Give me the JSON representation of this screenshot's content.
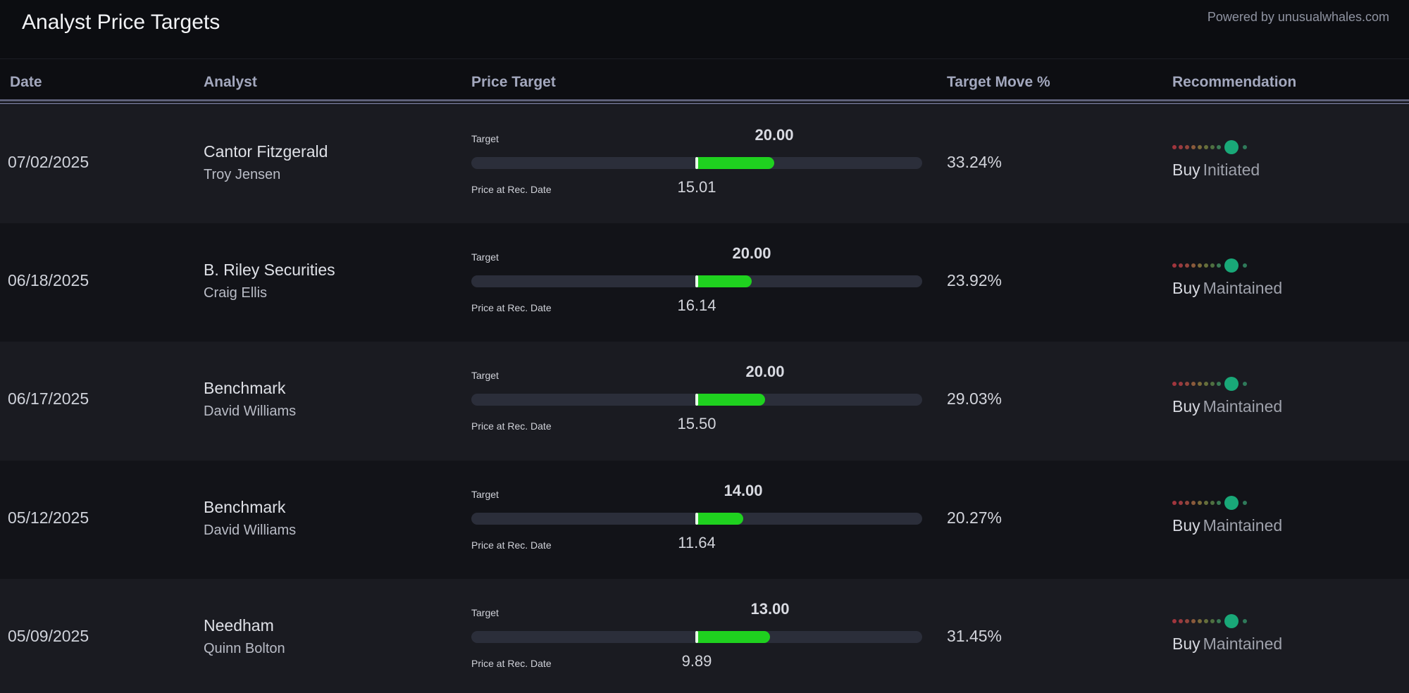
{
  "header": {
    "title": "Analyst Price Targets",
    "powered_by": "Powered by unusualwhales.com"
  },
  "columns": {
    "date": "Date",
    "analyst": "Analyst",
    "price_target": "Price Target",
    "target_move": "Target Move %",
    "recommendation": "Recommendation"
  },
  "labels": {
    "target": "Target",
    "price_at_rec": "Price at Rec. Date"
  },
  "colors": {
    "background": "#0d0e12",
    "row_odd": "#1a1b21",
    "row_even": "#121318",
    "fill_green": "#1fd11f",
    "rating_dot": "#19a878"
  },
  "rows": [
    {
      "date": "07/02/2025",
      "firm": "Cantor Fitzgerald",
      "analyst": "Troy Jensen",
      "target": "20.00",
      "price": "15.01",
      "move": "33.24%",
      "rating": "Buy",
      "action": "Initiated"
    },
    {
      "date": "06/18/2025",
      "firm": "B. Riley Securities",
      "analyst": "Craig Ellis",
      "target": "20.00",
      "price": "16.14",
      "move": "23.92%",
      "rating": "Buy",
      "action": "Maintained"
    },
    {
      "date": "06/17/2025",
      "firm": "Benchmark",
      "analyst": "David Williams",
      "target": "20.00",
      "price": "15.50",
      "move": "29.03%",
      "rating": "Buy",
      "action": "Maintained"
    },
    {
      "date": "05/12/2025",
      "firm": "Benchmark",
      "analyst": "David Williams",
      "target": "14.00",
      "price": "11.64",
      "move": "20.27%",
      "rating": "Buy",
      "action": "Maintained"
    },
    {
      "date": "05/09/2025",
      "firm": "Needham",
      "analyst": "Quinn Bolton",
      "target": "13.00",
      "price": "9.89",
      "move": "31.45%",
      "rating": "Buy",
      "action": "Maintained"
    }
  ]
}
